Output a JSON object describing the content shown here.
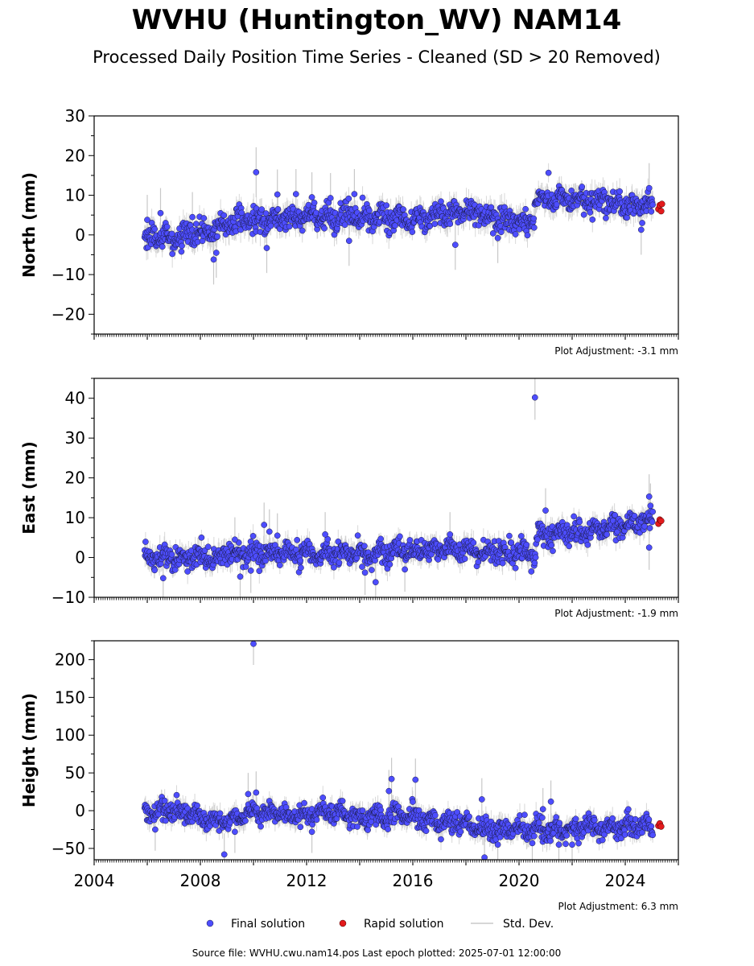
{
  "title": "WVHU (Huntington_WV) NAM14",
  "subtitle": "Processed Daily Position Time Series - Cleaned (SD > 20 Removed)",
  "legend": {
    "final_label": "Final solution",
    "rapid_label": "Rapid solution",
    "std_label": "Std. Dev.",
    "placement": "bottom-center"
  },
  "footer": "Source file: WVHU.cwu.nam14.pos  Last epoch plotted: 2025-07-01 12:00:00",
  "colors": {
    "final": "#4d4dff",
    "final_edge": "#1a1a40",
    "rapid": "#e31a1c",
    "std": "#c8c8c8"
  },
  "chart_data": [
    {
      "type": "scatter",
      "ylabel": "North (mm)",
      "adjustment": "Plot Adjustment: -3.1 mm",
      "xlim": [
        2004.0,
        2026.0
      ],
      "ylim": [
        -25,
        30
      ],
      "yticks": [
        -20,
        -10,
        0,
        10,
        20,
        30
      ],
      "ytick_labels": [
        "−20",
        "−10",
        "0",
        "10",
        "20",
        "30"
      ],
      "trend": [
        [
          2005.9,
          -1.0
        ],
        [
          2008.0,
          0.0
        ],
        [
          2009.5,
          3.5
        ],
        [
          2012.0,
          4.5
        ],
        [
          2014.0,
          4.5
        ],
        [
          2016.0,
          4.0
        ],
        [
          2018.0,
          6.0
        ],
        [
          2020.5,
          3.0
        ],
        [
          2020.6,
          9.0
        ],
        [
          2022.0,
          9.0
        ],
        [
          2025.0,
          7.0
        ]
      ],
      "scatter_sd": 1.8,
      "outliers": [
        [
          2006.0,
          3.8
        ],
        [
          2006.5,
          5.5
        ],
        [
          2007.7,
          4.5
        ],
        [
          2008.5,
          -6.2
        ],
        [
          2008.6,
          -4.5
        ],
        [
          2010.1,
          15.8
        ],
        [
          2010.5,
          -3.3
        ],
        [
          2010.9,
          10.2
        ],
        [
          2011.6,
          10.3
        ],
        [
          2012.2,
          9.5
        ],
        [
          2012.9,
          9.3
        ],
        [
          2013.6,
          -1.5
        ],
        [
          2013.8,
          10.3
        ],
        [
          2017.6,
          -2.5
        ],
        [
          2019.2,
          -0.8
        ],
        [
          2024.6,
          1.3
        ],
        [
          2024.9,
          11.8
        ]
      ],
      "rapid": [
        [
          2025.25,
          6.5
        ],
        [
          2025.3,
          7.5
        ],
        [
          2025.35,
          6.0
        ],
        [
          2025.38,
          7.8
        ]
      ]
    },
    {
      "type": "scatter",
      "ylabel": "East (mm)",
      "adjustment": "Plot Adjustment: -1.9 mm",
      "xlim": [
        2004.0,
        2026.0
      ],
      "ylim": [
        -10,
        45
      ],
      "yticks": [
        -10,
        0,
        10,
        20,
        30,
        40
      ],
      "ytick_labels": [
        "−10",
        "0",
        "10",
        "20",
        "30",
        "40"
      ],
      "trend": [
        [
          2005.9,
          0.0
        ],
        [
          2008.0,
          0.0
        ],
        [
          2010.0,
          1.0
        ],
        [
          2014.0,
          1.0
        ],
        [
          2017.0,
          2.0
        ],
        [
          2020.6,
          1.0
        ],
        [
          2020.7,
          6.0
        ],
        [
          2022.0,
          6.5
        ],
        [
          2024.0,
          8.0
        ],
        [
          2025.0,
          9.0
        ]
      ],
      "scatter_sd": 1.6,
      "outliers": [
        [
          2006.6,
          -5.2
        ],
        [
          2009.3,
          4.5
        ],
        [
          2009.5,
          -4.8
        ],
        [
          2009.9,
          -3.3
        ],
        [
          2010.4,
          8.2
        ],
        [
          2010.6,
          6.5
        ],
        [
          2010.9,
          5.5
        ],
        [
          2012.7,
          5.8
        ],
        [
          2014.2,
          -3.8
        ],
        [
          2014.6,
          -6.2
        ],
        [
          2015.7,
          -3.0
        ],
        [
          2017.4,
          5.8
        ],
        [
          2020.6,
          40.2
        ],
        [
          2021.0,
          11.8
        ],
        [
          2024.9,
          15.3
        ],
        [
          2024.95,
          13.0
        ],
        [
          2024.9,
          2.5
        ]
      ],
      "rapid": [
        [
          2025.25,
          8.5
        ],
        [
          2025.3,
          9.5
        ],
        [
          2025.35,
          9.2
        ]
      ]
    },
    {
      "type": "scatter",
      "ylabel": "Height (mm)",
      "adjustment": "Plot Adjustment: 6.3 mm",
      "xlim": [
        2004.0,
        2026.0
      ],
      "ylim": [
        -65,
        225
      ],
      "yticks": [
        -50,
        0,
        50,
        100,
        150,
        200
      ],
      "ytick_labels": [
        "−50",
        "0",
        "50",
        "100",
        "150",
        "200"
      ],
      "xticks": [
        2004,
        2008,
        2012,
        2016,
        2020,
        2024
      ],
      "xtick_labels": [
        "2004",
        "2008",
        "2012",
        "2016",
        "2020",
        "2024"
      ],
      "trend": [
        [
          2005.9,
          -2.0
        ],
        [
          2007.0,
          0.0
        ],
        [
          2008.5,
          -12.0
        ],
        [
          2009.0,
          -15.0
        ],
        [
          2010.0,
          0.0
        ],
        [
          2011.0,
          -5.0
        ],
        [
          2012.0,
          -5.0
        ],
        [
          2013.0,
          0.0
        ],
        [
          2014.0,
          -10.0
        ],
        [
          2015.5,
          -5.0
        ],
        [
          2017.0,
          -15.0
        ],
        [
          2018.0,
          -20.0
        ],
        [
          2019.0,
          -25.0
        ],
        [
          2020.5,
          -25.0
        ],
        [
          2022.0,
          -25.0
        ],
        [
          2024.0,
          -20.0
        ],
        [
          2025.0,
          -22.0
        ]
      ],
      "scatter_sd": 8.0,
      "outliers": [
        [
          2006.3,
          -25.0
        ],
        [
          2008.9,
          -58.0
        ],
        [
          2009.3,
          -28.0
        ],
        [
          2009.8,
          22.0
        ],
        [
          2010.0,
          221.0
        ],
        [
          2010.1,
          24.0
        ],
        [
          2012.2,
          -28.0
        ],
        [
          2015.1,
          26.0
        ],
        [
          2015.2,
          42.0
        ],
        [
          2016.1,
          41.0
        ],
        [
          2018.6,
          15.0
        ],
        [
          2018.7,
          -62.0
        ],
        [
          2019.2,
          -45.0
        ],
        [
          2020.5,
          -43.0
        ],
        [
          2020.9,
          2.0
        ],
        [
          2021.2,
          12.0
        ],
        [
          2021.5,
          -45.0
        ],
        [
          2022.0,
          -45.0
        ]
      ],
      "rapid": [
        [
          2025.25,
          -20.0
        ],
        [
          2025.3,
          -17.0
        ],
        [
          2025.35,
          -21.0
        ]
      ]
    }
  ]
}
